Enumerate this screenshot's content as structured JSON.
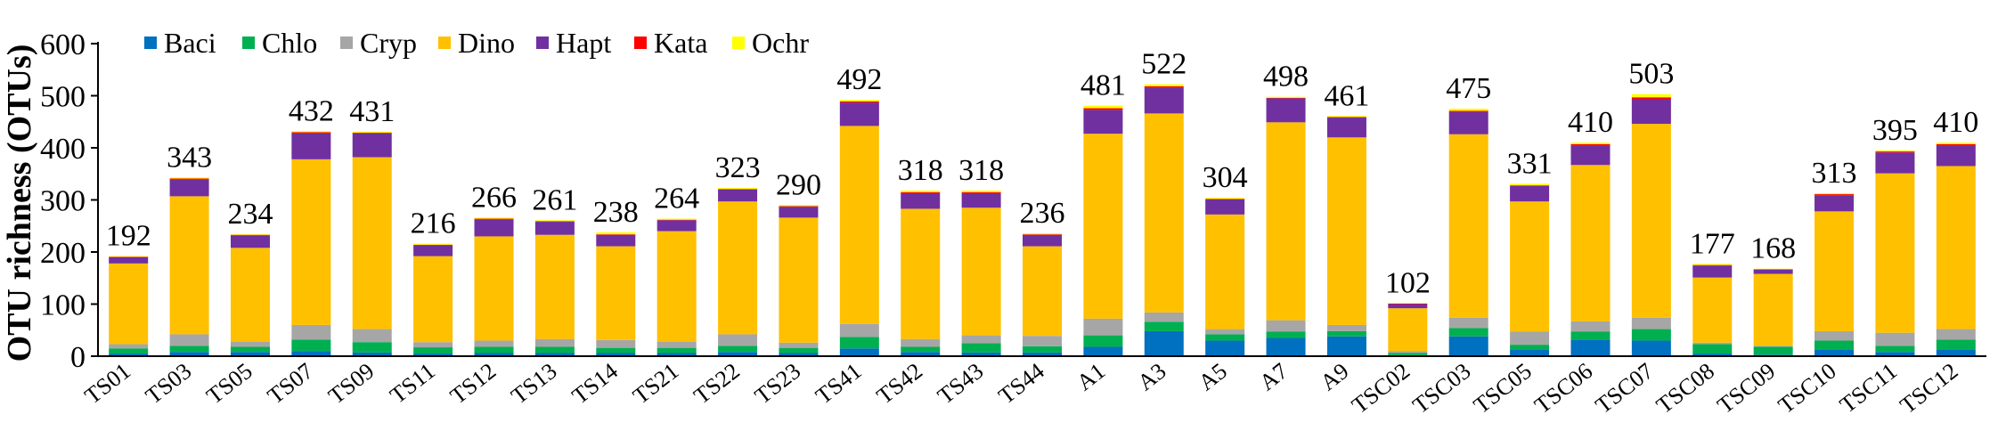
{
  "chart_data": {
    "type": "bar",
    "stacked": true,
    "title": "",
    "xlabel": "",
    "ylabel": "OTU richness (OTUs)",
    "ylim": [
      0,
      600
    ],
    "yticks": [
      0,
      100,
      200,
      300,
      400,
      500,
      600
    ],
    "grid": false,
    "legend_position": "top-left",
    "categories": [
      "TS01",
      "TS03",
      "TS05",
      "TS07",
      "TS09",
      "TS11",
      "TS12",
      "TS13",
      "TS14",
      "TS21",
      "TS22",
      "TS23",
      "TS41",
      "TS42",
      "TS43",
      "TS44",
      "A1",
      "A3",
      "A5",
      "A7",
      "A9",
      "TSC02",
      "TSC03",
      "TSC05",
      "TSC06",
      "TSC07",
      "TSC08",
      "TSC09",
      "TSC10",
      "TSC11",
      "TSC12"
    ],
    "totals": [
      192,
      343,
      234,
      432,
      431,
      216,
      266,
      261,
      238,
      264,
      323,
      290,
      492,
      318,
      318,
      236,
      481,
      522,
      304,
      498,
      461,
      102,
      475,
      331,
      410,
      503,
      177,
      168,
      313,
      395,
      410
    ],
    "series": [
      {
        "name": "Baci",
        "color": "#0070C0",
        "values": [
          5,
          8,
          8,
          10,
          7,
          5,
          6,
          6,
          6,
          6,
          8,
          6,
          15,
          8,
          7,
          7,
          18,
          48,
          30,
          35,
          38,
          2,
          38,
          12,
          32,
          30,
          5,
          3,
          12,
          8,
          12
        ]
      },
      {
        "name": "Chlo",
        "color": "#00B050",
        "values": [
          10,
          12,
          10,
          22,
          20,
          12,
          12,
          12,
          10,
          10,
          12,
          10,
          22,
          10,
          18,
          12,
          22,
          18,
          12,
          12,
          10,
          4,
          16,
          10,
          15,
          22,
          18,
          15,
          18,
          12,
          20
        ]
      },
      {
        "name": "Cryp",
        "color": "#A6A6A6",
        "values": [
          8,
          22,
          10,
          28,
          25,
          10,
          12,
          15,
          15,
          12,
          22,
          10,
          25,
          15,
          15,
          20,
          32,
          18,
          10,
          22,
          12,
          4,
          20,
          25,
          20,
          22,
          3,
          2,
          18,
          25,
          20
        ]
      },
      {
        "name": "Dino",
        "color": "#FFC000",
        "values": [
          155,
          265,
          180,
          318,
          330,
          165,
          200,
          200,
          180,
          212,
          255,
          240,
          380,
          250,
          245,
          172,
          355,
          382,
          220,
          380,
          360,
          82,
          352,
          250,
          300,
          372,
          125,
          138,
          230,
          306,
          313
        ]
      },
      {
        "name": "Hapt",
        "color": "#7030A0",
        "values": [
          12,
          33,
          24,
          50,
          46,
          21,
          32,
          25,
          22,
          21,
          23,
          21,
          45,
          30,
          28,
          22,
          46,
          50,
          29,
          46,
          38,
          8,
          43,
          30,
          38,
          48,
          23,
          8,
          30,
          40,
          40
        ]
      },
      {
        "name": "Kata",
        "color": "#FF0000",
        "values": [
          1,
          1,
          1,
          2,
          1,
          1,
          2,
          1,
          1,
          1,
          1,
          1,
          2,
          2,
          2,
          1,
          3,
          2,
          1,
          1,
          1,
          1,
          2,
          1,
          2,
          3,
          1,
          1,
          3,
          2,
          2
        ]
      },
      {
        "name": "Ochr",
        "color": "#FFFF00",
        "values": [
          1,
          2,
          1,
          2,
          2,
          2,
          2,
          2,
          4,
          2,
          2,
          2,
          3,
          3,
          3,
          2,
          5,
          4,
          2,
          2,
          2,
          1,
          4,
          3,
          3,
          6,
          2,
          1,
          2,
          2,
          3
        ]
      }
    ]
  }
}
